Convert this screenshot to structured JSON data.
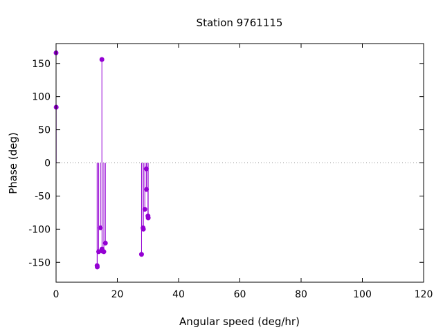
{
  "chart_data": {
    "type": "scatter",
    "title": "Station 9761115",
    "xlabel": "Angular speed (deg/hr)",
    "ylabel": "Phase (deg)",
    "xlim": [
      0,
      120
    ],
    "ylim": [
      -180,
      180
    ],
    "xticks": [
      0,
      20,
      40,
      60,
      80,
      100,
      120
    ],
    "yticks": [
      -150,
      -100,
      -50,
      0,
      50,
      100,
      150
    ],
    "zero_line": true,
    "grid": false,
    "color": "#9400d3",
    "style": "impulses with point markers",
    "series": [
      {
        "x": [
          0.0,
          0.04,
          13.4,
          13.45,
          13.9,
          14.5,
          14.96,
          15.0,
          15.04,
          15.6,
          16.1,
          27.9,
          28.4,
          28.5,
          28.98,
          29.45,
          29.5,
          30.0,
          30.08
        ],
        "y": [
          166,
          84,
          -155,
          -157,
          -134,
          -98,
          156,
          -130,
          -133,
          -134,
          -121,
          -138,
          -98,
          -100,
          -70,
          -9,
          -40,
          -80,
          -83
        ]
      }
    ]
  }
}
